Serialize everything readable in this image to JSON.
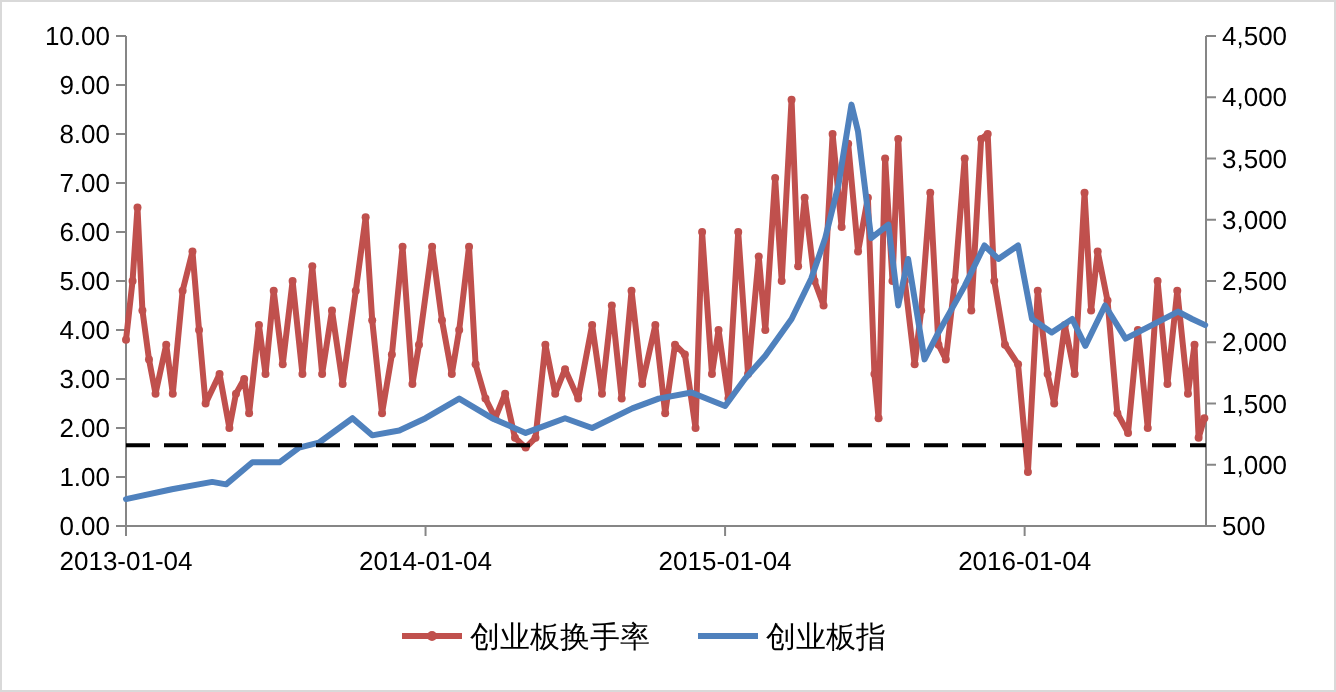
{
  "chart_data": {
    "type": "line",
    "legend": "bottom",
    "grid": false,
    "xlim": [
      "2013-01-04",
      "2016-08-12"
    ],
    "xticks": [
      "2013-01-04",
      "2014-01-04",
      "2015-01-04",
      "2016-01-04"
    ],
    "ylim": [
      0,
      10
    ],
    "yticks": [
      {
        "value": 0,
        "label": "0.00"
      },
      {
        "value": 1,
        "label": "1.00"
      },
      {
        "value": 2,
        "label": "2.00"
      },
      {
        "value": 3,
        "label": "3.00"
      },
      {
        "value": 4,
        "label": "4.00"
      },
      {
        "value": 5,
        "label": "5.00"
      },
      {
        "value": 6,
        "label": "6.00"
      },
      {
        "value": 7,
        "label": "7.00"
      },
      {
        "value": 8,
        "label": "8.00"
      },
      {
        "value": 9,
        "label": "9.00"
      },
      {
        "value": 10,
        "label": "10.00"
      }
    ],
    "y2lim": [
      500,
      4500
    ],
    "y2ticks": [
      500,
      {
        "value": 1000,
        "label": "1,000"
      },
      {
        "value": 1500,
        "label": "1,500"
      },
      {
        "value": 2000,
        "label": "2,000"
      },
      {
        "value": 2500,
        "label": "2,500"
      },
      {
        "value": 3000,
        "label": "3,000"
      },
      {
        "value": 3500,
        "label": "3,500"
      },
      {
        "value": 4000,
        "label": "4,000"
      },
      {
        "value": 4500,
        "label": "4,500"
      }
    ],
    "ref_lines": [
      {
        "axis": "y",
        "value": 1.65,
        "color": "#000000",
        "line_style": "dashed"
      }
    ],
    "series": [
      {
        "name": "创业板换手率",
        "color": "#c0504d",
        "marker": "circle",
        "axis": "y",
        "x": [
          "2013-01-04",
          "2013-01-12",
          "2013-01-18",
          "2013-01-24",
          "2013-02-01",
          "2013-02-09",
          "2013-02-22",
          "2013-03-02",
          "2013-03-14",
          "2013-03-26",
          "2013-04-03",
          "2013-04-11",
          "2013-04-28",
          "2013-05-10",
          "2013-05-18",
          "2013-05-28",
          "2013-06-03",
          "2013-06-15",
          "2013-06-23",
          "2013-07-03",
          "2013-07-14",
          "2013-07-26",
          "2013-08-07",
          "2013-08-19",
          "2013-08-31",
          "2013-09-12",
          "2013-09-25",
          "2013-10-11",
          "2013-10-23",
          "2013-10-31",
          "2013-11-12",
          "2013-11-24",
          "2013-12-07",
          "2013-12-19",
          "2013-12-27",
          "2014-01-12",
          "2014-01-24",
          "2014-02-05",
          "2014-02-14",
          "2014-02-26",
          "2014-03-06",
          "2014-03-18",
          "2014-03-30",
          "2014-04-11",
          "2014-04-23",
          "2014-05-06",
          "2014-05-18",
          "2014-05-30",
          "2014-06-11",
          "2014-06-23",
          "2014-07-09",
          "2014-07-26",
          "2014-08-07",
          "2014-08-19",
          "2014-08-31",
          "2014-09-12",
          "2014-09-25",
          "2014-10-11",
          "2014-10-23",
          "2014-11-04",
          "2014-11-16",
          "2014-11-29",
          "2014-12-07",
          "2014-12-19",
          "2014-12-27",
          "2015-01-08",
          "2015-01-20",
          "2015-02-01",
          "2015-02-14",
          "2015-02-22",
          "2015-03-06",
          "2015-03-14",
          "2015-03-26",
          "2015-04-03",
          "2015-04-11",
          "2015-04-23",
          "2015-05-04",
          "2015-05-15",
          "2015-05-26",
          "2015-06-03",
          "2015-06-15",
          "2015-06-27",
          "2015-07-05",
          "2015-07-10",
          "2015-07-18",
          "2015-07-27",
          "2015-08-03",
          "2015-08-11",
          "2015-08-23",
          "2015-08-31",
          "2015-09-11",
          "2015-09-21",
          "2015-09-30",
          "2015-10-11",
          "2015-10-23",
          "2015-10-31",
          "2015-11-12",
          "2015-11-20",
          "2015-11-28",
          "2015-12-11",
          "2015-12-27",
          "2016-01-08",
          "2016-01-20",
          "2016-02-01",
          "2016-02-09",
          "2016-02-22",
          "2016-03-05",
          "2016-03-17",
          "2016-03-25",
          "2016-04-02",
          "2016-04-14",
          "2016-04-26",
          "2016-05-09",
          "2016-05-21",
          "2016-06-02",
          "2016-06-14",
          "2016-06-26",
          "2016-07-08",
          "2016-07-21",
          "2016-07-29",
          "2016-08-03",
          "2016-08-10"
        ],
        "values": [
          3.8,
          5.0,
          6.5,
          4.4,
          3.4,
          2.7,
          3.7,
          2.7,
          4.8,
          5.6,
          4.0,
          2.5,
          3.1,
          2.0,
          2.7,
          3.0,
          2.3,
          4.1,
          3.1,
          4.8,
          3.3,
          5.0,
          3.1,
          5.3,
          3.1,
          4.4,
          2.9,
          4.8,
          6.3,
          4.2,
          2.3,
          3.5,
          5.7,
          2.9,
          3.7,
          5.7,
          4.2,
          3.1,
          4.0,
          5.7,
          3.3,
          2.6,
          2.2,
          2.7,
          1.8,
          1.6,
          1.8,
          3.7,
          2.7,
          3.2,
          2.6,
          4.1,
          2.7,
          4.5,
          2.6,
          4.8,
          2.9,
          4.1,
          2.3,
          3.7,
          3.5,
          2.0,
          6.0,
          3.1,
          4.0,
          2.6,
          6.0,
          3.1,
          5.5,
          4.0,
          7.1,
          5.0,
          8.7,
          5.3,
          6.7,
          5.0,
          4.5,
          8.0,
          6.1,
          7.8,
          5.6,
          6.7,
          3.1,
          2.2,
          7.5,
          5.0,
          7.9,
          5.0,
          3.3,
          4.4,
          6.8,
          3.7,
          3.4,
          5.0,
          7.5,
          4.4,
          7.9,
          8.0,
          5.0,
          3.7,
          3.3,
          1.1,
          4.8,
          3.1,
          2.5,
          4.1,
          3.1,
          6.8,
          4.4,
          5.6,
          4.6,
          2.3,
          1.9,
          4.0,
          2.0,
          5.0,
          2.9,
          4.8,
          2.7,
          3.7,
          1.8,
          2.2
        ]
      },
      {
        "name": "创业板指",
        "color": "#4f81bd",
        "marker": "none",
        "axis": "y2",
        "x": [
          "2013-01-04",
          "2013-03-01",
          "2013-04-19",
          "2013-05-06",
          "2013-06-07",
          "2013-07-10",
          "2013-08-03",
          "2013-08-27",
          "2013-10-07",
          "2013-10-31",
          "2013-12-03",
          "2014-01-04",
          "2014-02-14",
          "2014-03-26",
          "2014-05-06",
          "2014-06-23",
          "2014-07-26",
          "2014-09-13",
          "2014-10-15",
          "2014-11-24",
          "2015-01-04",
          "2015-01-28",
          "2015-02-22",
          "2015-03-26",
          "2015-04-19",
          "2015-05-06",
          "2015-05-22",
          "2015-06-07",
          "2015-06-15",
          "2015-07-01",
          "2015-07-22",
          "2015-08-03",
          "2015-08-15",
          "2015-09-04",
          "2015-09-21",
          "2015-10-23",
          "2015-11-16",
          "2015-12-03",
          "2015-12-27",
          "2016-01-13",
          "2016-02-06",
          "2016-03-02",
          "2016-03-18",
          "2016-04-11",
          "2016-05-06",
          "2016-06-07",
          "2016-07-09",
          "2016-07-26",
          "2016-08-11"
        ],
        "values": [
          720,
          800,
          860,
          840,
          1020,
          1020,
          1140,
          1180,
          1380,
          1240,
          1280,
          1380,
          1540,
          1380,
          1260,
          1380,
          1300,
          1460,
          1540,
          1590,
          1480,
          1700,
          1890,
          2190,
          2520,
          2850,
          3280,
          3940,
          3720,
          2850,
          2960,
          2300,
          2680,
          1860,
          2080,
          2460,
          2790,
          2680,
          2790,
          2190,
          2080,
          2190,
          1970,
          2300,
          2030,
          2140,
          2250,
          2190,
          2140
        ]
      }
    ]
  }
}
